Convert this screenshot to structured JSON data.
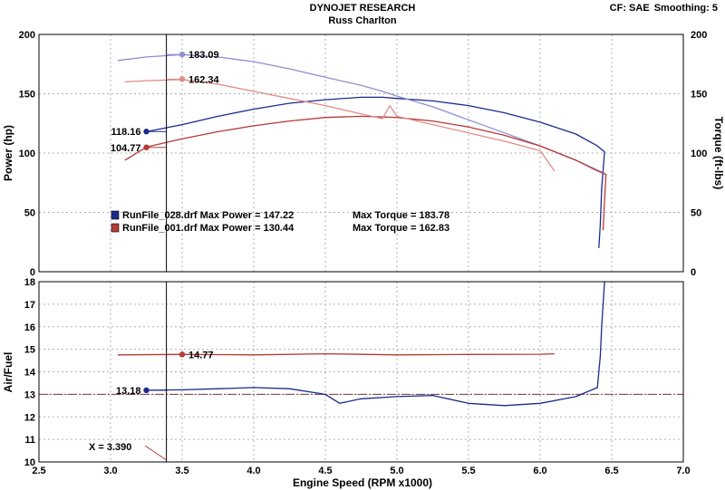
{
  "header": {
    "title": "DYNOJET RESEARCH",
    "subtitle": "Russ Charlton",
    "cf_label": "CF: SAE",
    "smoothing_label": "Smoothing: 5"
  },
  "colors": {
    "run028": "#1c2a8c",
    "run028_light": "#8c8fd0",
    "run001": "#b53a35",
    "run001_light": "#df8c86",
    "grid": "#b0b0b0",
    "cursor": "#000000",
    "afr_ref": "#7a3b3b"
  },
  "chart_data": [
    {
      "type": "line",
      "name": "power-torque",
      "xlabel": "Engine Speed (RPM x1000)",
      "xlim": [
        2.5,
        7.0
      ],
      "xticks": [
        "2.5",
        "3.0",
        "3.5",
        "4.0",
        "4.5",
        "5.0",
        "5.5",
        "6.0",
        "6.5",
        "7.0"
      ],
      "y_left_label": "Power (hp)",
      "y_left_lim": [
        0,
        200
      ],
      "y_left_ticks": [
        "0",
        "50",
        "100",
        "150",
        "200"
      ],
      "y_right_label": "Torque (ft-lbs)",
      "y_right_lim": [
        0,
        200
      ],
      "y_right_ticks": [
        "0",
        "50",
        "100",
        "150",
        "200"
      ],
      "grid": true,
      "legend": [
        {
          "file": "RunFile_028.drf",
          "max_power_label": "Max Power = 147.22",
          "max_torque_label": "Max Torque = 183.78",
          "color": "run028"
        },
        {
          "file": "RunFile_001.drf",
          "max_power_label": "Max Power = 130.44",
          "max_torque_label": "Max Torque = 162.83",
          "color": "run001"
        }
      ],
      "series": [
        {
          "name": "RunFile_028.drf",
          "quantity": "power",
          "color": "run028",
          "x": [
            3.25,
            3.5,
            3.75,
            4.0,
            4.25,
            4.5,
            4.75,
            4.9,
            5.0,
            5.25,
            5.5,
            5.75,
            6.0,
            6.25,
            6.4,
            6.45,
            6.43,
            6.42,
            6.41
          ],
          "y": [
            118,
            124,
            131,
            137,
            142,
            145,
            147,
            147,
            146,
            144,
            140,
            134,
            126,
            116,
            106,
            101,
            70,
            40,
            20
          ]
        },
        {
          "name": "RunFile_028.drf",
          "quantity": "torque",
          "color": "run028_light",
          "x": [
            3.05,
            3.25,
            3.5,
            3.75,
            4.0,
            4.25,
            4.5,
            4.75,
            4.9,
            5.0,
            5.25,
            5.5,
            5.75,
            6.0,
            6.25,
            6.45
          ],
          "y": [
            178,
            181,
            183,
            181,
            177,
            171,
            164,
            157,
            152,
            148,
            139,
            128,
            117,
            106,
            94,
            83
          ]
        },
        {
          "name": "RunFile_001.drf",
          "quantity": "power",
          "color": "run001",
          "x": [
            3.1,
            3.25,
            3.5,
            3.75,
            4.0,
            4.25,
            4.5,
            4.75,
            5.0,
            5.25,
            5.5,
            5.75,
            6.0,
            6.25,
            6.4,
            6.46,
            6.45,
            6.44
          ],
          "y": [
            94,
            105,
            112,
            118,
            123,
            127,
            130,
            131,
            130,
            127,
            122,
            115,
            106,
            94,
            85,
            82,
            60,
            35
          ]
        },
        {
          "name": "RunFile_001.drf",
          "quantity": "torque",
          "color": "run001_light",
          "x": [
            3.1,
            3.25,
            3.5,
            3.75,
            4.0,
            4.25,
            4.5,
            4.75,
            4.9,
            4.95,
            5.0,
            5.25,
            5.5,
            5.75,
            6.0,
            6.1
          ],
          "y": [
            160,
            161,
            162,
            158,
            152,
            146,
            140,
            133,
            129,
            140,
            131,
            124,
            117,
            110,
            102,
            85
          ]
        }
      ],
      "cursor": {
        "x": 3.39,
        "readouts": [
          {
            "label": "183.09",
            "x": 3.5,
            "y": 183.09,
            "color": "run028_light"
          },
          {
            "label": "162.34",
            "x": 3.5,
            "y": 162.34,
            "color": "run001_light"
          },
          {
            "label": "118.16",
            "x": 3.25,
            "y": 118.16,
            "color": "run028"
          },
          {
            "label": "104.77",
            "x": 3.25,
            "y": 104.77,
            "color": "run001"
          }
        ]
      }
    },
    {
      "type": "line",
      "name": "air-fuel",
      "xlabel": "Engine Speed (RPM x1000)",
      "xlim": [
        2.5,
        7.0
      ],
      "ylabel": "Air/Fuel",
      "ylim": [
        10,
        18
      ],
      "yticks": [
        "10",
        "11",
        "12",
        "13",
        "14",
        "15",
        "16",
        "17",
        "18"
      ],
      "grid": true,
      "reference_line": 13.0,
      "series": [
        {
          "name": "RunFile_028.drf",
          "color": "run028",
          "x": [
            3.25,
            3.5,
            3.75,
            4.0,
            4.25,
            4.5,
            4.6,
            4.75,
            5.0,
            5.25,
            5.5,
            5.75,
            6.0,
            6.25,
            6.4,
            6.42,
            6.43,
            6.45
          ],
          "y": [
            13.18,
            13.2,
            13.25,
            13.3,
            13.25,
            13.0,
            12.6,
            12.8,
            12.9,
            12.95,
            12.6,
            12.5,
            12.6,
            12.9,
            13.3,
            14.7,
            16.0,
            18.0
          ]
        },
        {
          "name": "RunFile_001.drf",
          "color": "run001",
          "x": [
            3.05,
            3.5,
            4.0,
            4.5,
            5.0,
            5.5,
            6.0,
            6.1
          ],
          "y": [
            14.75,
            14.77,
            14.75,
            14.8,
            14.75,
            14.77,
            14.78,
            14.8
          ]
        }
      ],
      "cursor": {
        "x_label": "X = 3.390",
        "readouts": [
          {
            "label": "14.77",
            "x": 3.5,
            "y": 14.77,
            "color": "run001"
          },
          {
            "label": "13.18",
            "x": 3.25,
            "y": 13.18,
            "color": "run028"
          }
        ]
      }
    }
  ]
}
